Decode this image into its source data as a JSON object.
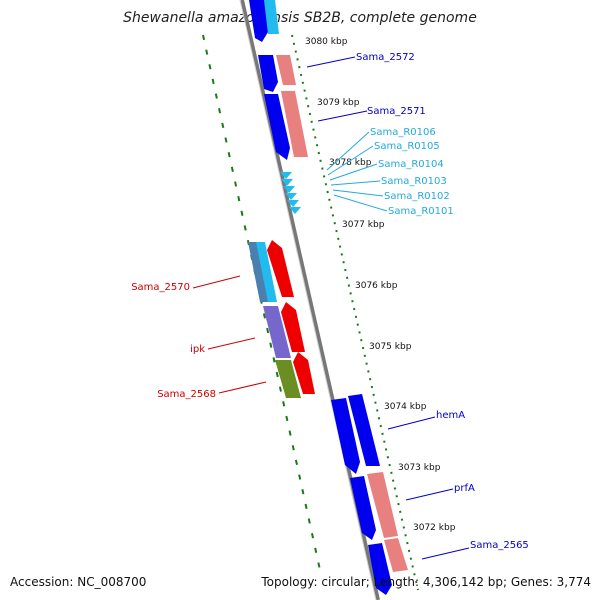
{
  "title": "Shewanella amazonensis SB2B, complete genome",
  "accession": "Accession: NC_008700",
  "topology": "Topology: circular; Length: 4,306,142 bp; Genes: 3,774",
  "ticks": [
    "3080 kbp",
    "3079 kbp",
    "3078 kbp",
    "3077 kbp",
    "3076 kbp",
    "3075 kbp",
    "3074 kbp",
    "3073 kbp",
    "3072 kbp"
  ],
  "genes": {
    "Sama_2572": "Sama_2572",
    "Sama_2571": "Sama_2571",
    "Sama_R0106": "Sama_R0106",
    "Sama_R0105": "Sama_R0105",
    "Sama_R0104": "Sama_R0104",
    "Sama_R0103": "Sama_R0103",
    "Sama_R0102": "Sama_R0102",
    "Sama_R0101": "Sama_R0101",
    "Sama_2570": "Sama_2570",
    "ipk": "ipk",
    "Sama_2568": "Sama_2568",
    "hemA": "hemA",
    "prfA": "prfA",
    "Sama_2565": "Sama_2565"
  },
  "colors": {
    "blue": "#0000ee",
    "pink": "#e88080",
    "red": "#ee0000",
    "cyan": "#22bbee",
    "purple": "#7766cc",
    "olive": "#6b8e23",
    "steel": "#4a7fb0",
    "grey_line": "#777777",
    "tick_green": "#1a7a1a",
    "label_blue": "#0000cc",
    "label_cyan": "#22aadd",
    "label_red": "#cc0000"
  }
}
